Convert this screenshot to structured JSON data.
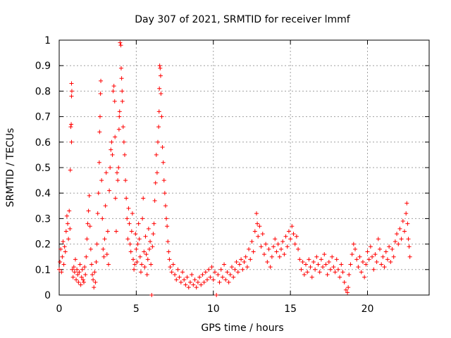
{
  "chart_data": {
    "type": "scatter",
    "title": "Day 307 of 2021, SRMTID for receiver lmmf",
    "xlabel": "GPS time / hours",
    "ylabel": "SRMTID / TECUs",
    "xlim": [
      0,
      24
    ],
    "ylim": [
      0,
      1
    ],
    "xticks": [
      0,
      5,
      10,
      15,
      20
    ],
    "yticks": [
      0,
      0.1,
      0.2,
      0.3,
      0.4,
      0.5,
      0.6,
      0.7,
      0.8,
      0.9,
      1
    ],
    "ytick_labels": [
      "0",
      "0.1",
      "0.2",
      "0.3",
      "0.4",
      "0.5",
      "0.6",
      "0.7",
      "0.8",
      "0.9",
      "1"
    ],
    "grid": true,
    "marker": "+",
    "marker_color": "#ff0000",
    "series": [
      {
        "name": "SRMTID",
        "points": [
          [
            0.0,
            0.1
          ],
          [
            0.05,
            0.13
          ],
          [
            0.1,
            0.18
          ],
          [
            0.15,
            0.09
          ],
          [
            0.2,
            0.15
          ],
          [
            0.25,
            0.21
          ],
          [
            0.3,
            0.12
          ],
          [
            0.35,
            0.19
          ],
          [
            0.4,
            0.17
          ],
          [
            0.45,
            0.25
          ],
          [
            0.5,
            0.31
          ],
          [
            0.55,
            0.28
          ],
          [
            0.6,
            0.22
          ],
          [
            0.65,
            0.33
          ],
          [
            0.7,
            0.26
          ],
          [
            0.72,
            0.49
          ],
          [
            0.75,
            0.66
          ],
          [
            0.78,
            0.67
          ],
          [
            0.8,
            0.6
          ],
          [
            0.8,
            0.78
          ],
          [
            0.8,
            0.83
          ],
          [
            0.82,
            0.8
          ],
          [
            0.85,
            0.1
          ],
          [
            0.9,
            0.07
          ],
          [
            0.95,
            0.11
          ],
          [
            1.0,
            0.09
          ],
          [
            1.05,
            0.14
          ],
          [
            1.1,
            0.06
          ],
          [
            1.15,
            0.1
          ],
          [
            1.2,
            0.08
          ],
          [
            1.25,
            0.05
          ],
          [
            1.3,
            0.09
          ],
          [
            1.35,
            0.12
          ],
          [
            1.4,
            0.04
          ],
          [
            1.45,
            0.07
          ],
          [
            1.5,
            0.1
          ],
          [
            1.55,
            0.06
          ],
          [
            1.6,
            0.05
          ],
          [
            1.65,
            0.11
          ],
          [
            1.7,
            0.08
          ],
          [
            1.75,
            0.15
          ],
          [
            1.8,
            0.22
          ],
          [
            1.85,
            0.28
          ],
          [
            1.9,
            0.33
          ],
          [
            1.95,
            0.39
          ],
          [
            2.0,
            0.27
          ],
          [
            2.05,
            0.18
          ],
          [
            2.1,
            0.12
          ],
          [
            2.15,
            0.08
          ],
          [
            2.2,
            0.06
          ],
          [
            2.25,
            0.03
          ],
          [
            2.3,
            0.09
          ],
          [
            2.35,
            0.05
          ],
          [
            2.4,
            0.13
          ],
          [
            2.45,
            0.2
          ],
          [
            2.5,
            0.32
          ],
          [
            2.55,
            0.4
          ],
          [
            2.6,
            0.52
          ],
          [
            2.62,
            0.64
          ],
          [
            2.65,
            0.7
          ],
          [
            2.68,
            0.79
          ],
          [
            2.7,
            0.84
          ],
          [
            2.75,
            0.45
          ],
          [
            2.8,
            0.3
          ],
          [
            2.85,
            0.18
          ],
          [
            2.9,
            0.15
          ],
          [
            2.95,
            0.22
          ],
          [
            3.0,
            0.35
          ],
          [
            3.05,
            0.48
          ],
          [
            3.1,
            0.16
          ],
          [
            3.15,
            0.25
          ],
          [
            3.2,
            0.12
          ],
          [
            3.25,
            0.41
          ],
          [
            3.3,
            0.5
          ],
          [
            3.35,
            0.57
          ],
          [
            3.4,
            0.6
          ],
          [
            3.45,
            0.55
          ],
          [
            3.5,
            0.8
          ],
          [
            3.55,
            0.82
          ],
          [
            3.6,
            0.76
          ],
          [
            3.62,
            0.62
          ],
          [
            3.65,
            0.38
          ],
          [
            3.7,
            0.25
          ],
          [
            3.75,
            0.48
          ],
          [
            3.8,
            0.45
          ],
          [
            3.85,
            0.5
          ],
          [
            3.88,
            0.65
          ],
          [
            3.9,
            0.7
          ],
          [
            3.92,
            0.72
          ],
          [
            3.95,
            0.99
          ],
          [
            4.0,
            0.98
          ],
          [
            4.02,
            0.89
          ],
          [
            4.05,
            0.85
          ],
          [
            4.08,
            0.8
          ],
          [
            4.1,
            0.76
          ],
          [
            4.15,
            0.66
          ],
          [
            4.2,
            0.6
          ],
          [
            4.25,
            0.55
          ],
          [
            4.3,
            0.45
          ],
          [
            4.35,
            0.38
          ],
          [
            4.4,
            0.3
          ],
          [
            4.45,
            0.22
          ],
          [
            4.5,
            0.34
          ],
          [
            4.55,
            0.28
          ],
          [
            4.6,
            0.2
          ],
          [
            4.65,
            0.17
          ],
          [
            4.7,
            0.25
          ],
          [
            4.75,
            0.32
          ],
          [
            4.8,
            0.14
          ],
          [
            4.85,
            0.1
          ],
          [
            4.9,
            0.12
          ],
          [
            4.95,
            0.24
          ],
          [
            5.0,
            0.18
          ],
          [
            5.05,
            0.13
          ],
          [
            5.1,
            0.2
          ],
          [
            5.15,
            0.28
          ],
          [
            5.2,
            0.22
          ],
          [
            5.25,
            0.15
          ],
          [
            5.3,
            0.09
          ],
          [
            5.35,
            0.12
          ],
          [
            5.4,
            0.3
          ],
          [
            5.45,
            0.38
          ],
          [
            5.5,
            0.17
          ],
          [
            5.55,
            0.11
          ],
          [
            5.6,
            0.23
          ],
          [
            5.65,
            0.16
          ],
          [
            5.7,
            0.08
          ],
          [
            5.75,
            0.14
          ],
          [
            5.8,
            0.26
          ],
          [
            5.85,
            0.18
          ],
          [
            5.9,
            0.21
          ],
          [
            5.95,
            0.12
          ],
          [
            6.0,
            0.0
          ],
          [
            6.05,
            0.19
          ],
          [
            6.1,
            0.24
          ],
          [
            6.15,
            0.28
          ],
          [
            6.2,
            0.37
          ],
          [
            6.25,
            0.44
          ],
          [
            6.3,
            0.55
          ],
          [
            6.35,
            0.48
          ],
          [
            6.4,
            0.6
          ],
          [
            6.45,
            0.66
          ],
          [
            6.48,
            0.72
          ],
          [
            6.5,
            0.81
          ],
          [
            6.52,
            0.9
          ],
          [
            6.55,
            0.89
          ],
          [
            6.58,
            0.86
          ],
          [
            6.6,
            0.79
          ],
          [
            6.65,
            0.7
          ],
          [
            6.7,
            0.58
          ],
          [
            6.75,
            0.52
          ],
          [
            6.8,
            0.45
          ],
          [
            6.85,
            0.4
          ],
          [
            6.9,
            0.35
          ],
          [
            6.95,
            0.3
          ],
          [
            7.0,
            0.27
          ],
          [
            7.05,
            0.21
          ],
          [
            7.1,
            0.17
          ],
          [
            7.15,
            0.14
          ],
          [
            7.2,
            0.11
          ],
          [
            7.3,
            0.09
          ],
          [
            7.4,
            0.12
          ],
          [
            7.5,
            0.08
          ],
          [
            7.6,
            0.06
          ],
          [
            7.7,
            0.1
          ],
          [
            7.8,
            0.07
          ],
          [
            7.9,
            0.05
          ],
          [
            8.0,
            0.09
          ],
          [
            8.1,
            0.06
          ],
          [
            8.2,
            0.04
          ],
          [
            8.3,
            0.07
          ],
          [
            8.4,
            0.03
          ],
          [
            8.5,
            0.05
          ],
          [
            8.6,
            0.08
          ],
          [
            8.7,
            0.04
          ],
          [
            8.8,
            0.06
          ],
          [
            8.9,
            0.03
          ],
          [
            9.0,
            0.05
          ],
          [
            9.1,
            0.07
          ],
          [
            9.2,
            0.04
          ],
          [
            9.3,
            0.08
          ],
          [
            9.4,
            0.05
          ],
          [
            9.5,
            0.09
          ],
          [
            9.6,
            0.06
          ],
          [
            9.7,
            0.1
          ],
          [
            9.8,
            0.07
          ],
          [
            9.9,
            0.11
          ],
          [
            10.0,
            0.06
          ],
          [
            10.1,
            0.09
          ],
          [
            10.2,
            0.0
          ],
          [
            10.3,
            0.08
          ],
          [
            10.4,
            0.05
          ],
          [
            10.5,
            0.1
          ],
          [
            10.6,
            0.07
          ],
          [
            10.7,
            0.12
          ],
          [
            10.8,
            0.06
          ],
          [
            10.9,
            0.09
          ],
          [
            11.0,
            0.05
          ],
          [
            11.1,
            0.08
          ],
          [
            11.2,
            0.11
          ],
          [
            11.3,
            0.07
          ],
          [
            11.4,
            0.1
          ],
          [
            11.5,
            0.13
          ],
          [
            11.6,
            0.09
          ],
          [
            11.7,
            0.12
          ],
          [
            11.8,
            0.14
          ],
          [
            11.9,
            0.1
          ],
          [
            12.0,
            0.13
          ],
          [
            12.1,
            0.15
          ],
          [
            12.2,
            0.11
          ],
          [
            12.3,
            0.18
          ],
          [
            12.4,
            0.14
          ],
          [
            12.5,
            0.21
          ],
          [
            12.6,
            0.17
          ],
          [
            12.7,
            0.25
          ],
          [
            12.8,
            0.32
          ],
          [
            12.85,
            0.28
          ],
          [
            12.9,
            0.23
          ],
          [
            13.0,
            0.27
          ],
          [
            13.1,
            0.19
          ],
          [
            13.2,
            0.24
          ],
          [
            13.3,
            0.16
          ],
          [
            13.4,
            0.2
          ],
          [
            13.5,
            0.13
          ],
          [
            13.6,
            0.18
          ],
          [
            13.7,
            0.11
          ],
          [
            13.8,
            0.15
          ],
          [
            13.9,
            0.19
          ],
          [
            14.0,
            0.22
          ],
          [
            14.1,
            0.17
          ],
          [
            14.2,
            0.2
          ],
          [
            14.3,
            0.15
          ],
          [
            14.4,
            0.18
          ],
          [
            14.5,
            0.21
          ],
          [
            14.6,
            0.16
          ],
          [
            14.7,
            0.23
          ],
          [
            14.8,
            0.19
          ],
          [
            14.9,
            0.25
          ],
          [
            15.0,
            0.22
          ],
          [
            15.1,
            0.27
          ],
          [
            15.2,
            0.24
          ],
          [
            15.3,
            0.2
          ],
          [
            15.4,
            0.23
          ],
          [
            15.5,
            0.18
          ],
          [
            15.6,
            0.14
          ],
          [
            15.7,
            0.1
          ],
          [
            15.8,
            0.13
          ],
          [
            15.9,
            0.08
          ],
          [
            16.0,
            0.12
          ],
          [
            16.1,
            0.09
          ],
          [
            16.2,
            0.14
          ],
          [
            16.3,
            0.11
          ],
          [
            16.4,
            0.07
          ],
          [
            16.5,
            0.13
          ],
          [
            16.6,
            0.1
          ],
          [
            16.7,
            0.15
          ],
          [
            16.8,
            0.12
          ],
          [
            16.9,
            0.09
          ],
          [
            17.0,
            0.14
          ],
          [
            17.1,
            0.11
          ],
          [
            17.2,
            0.16
          ],
          [
            17.3,
            0.12
          ],
          [
            17.4,
            0.08
          ],
          [
            17.5,
            0.13
          ],
          [
            17.6,
            0.1
          ],
          [
            17.7,
            0.15
          ],
          [
            17.8,
            0.11
          ],
          [
            17.9,
            0.09
          ],
          [
            18.0,
            0.14
          ],
          [
            18.1,
            0.1
          ],
          [
            18.2,
            0.07
          ],
          [
            18.3,
            0.12
          ],
          [
            18.4,
            0.09
          ],
          [
            18.5,
            0.05
          ],
          [
            18.6,
            0.02
          ],
          [
            18.7,
            0.01
          ],
          [
            18.75,
            0.03
          ],
          [
            18.8,
            0.08
          ],
          [
            18.9,
            0.12
          ],
          [
            19.0,
            0.16
          ],
          [
            19.1,
            0.2
          ],
          [
            19.2,
            0.18
          ],
          [
            19.3,
            0.14
          ],
          [
            19.4,
            0.11
          ],
          [
            19.5,
            0.15
          ],
          [
            19.6,
            0.09
          ],
          [
            19.7,
            0.13
          ],
          [
            19.8,
            0.07
          ],
          [
            19.9,
            0.12
          ],
          [
            20.0,
            0.17
          ],
          [
            20.1,
            0.14
          ],
          [
            20.2,
            0.19
          ],
          [
            20.3,
            0.15
          ],
          [
            20.4,
            0.1
          ],
          [
            20.5,
            0.16
          ],
          [
            20.6,
            0.13
          ],
          [
            20.7,
            0.22
          ],
          [
            20.8,
            0.18
          ],
          [
            20.9,
            0.12
          ],
          [
            21.0,
            0.15
          ],
          [
            21.1,
            0.11
          ],
          [
            21.2,
            0.17
          ],
          [
            21.3,
            0.14
          ],
          [
            21.4,
            0.19
          ],
          [
            21.5,
            0.13
          ],
          [
            21.6,
            0.18
          ],
          [
            21.7,
            0.15
          ],
          [
            21.8,
            0.21
          ],
          [
            21.9,
            0.24
          ],
          [
            22.0,
            0.2
          ],
          [
            22.1,
            0.26
          ],
          [
            22.2,
            0.22
          ],
          [
            22.3,
            0.29
          ],
          [
            22.4,
            0.25
          ],
          [
            22.5,
            0.32
          ],
          [
            22.55,
            0.36
          ],
          [
            22.6,
            0.28
          ],
          [
            22.65,
            0.22
          ],
          [
            22.7,
            0.19
          ],
          [
            22.75,
            0.15
          ]
        ]
      }
    ]
  }
}
